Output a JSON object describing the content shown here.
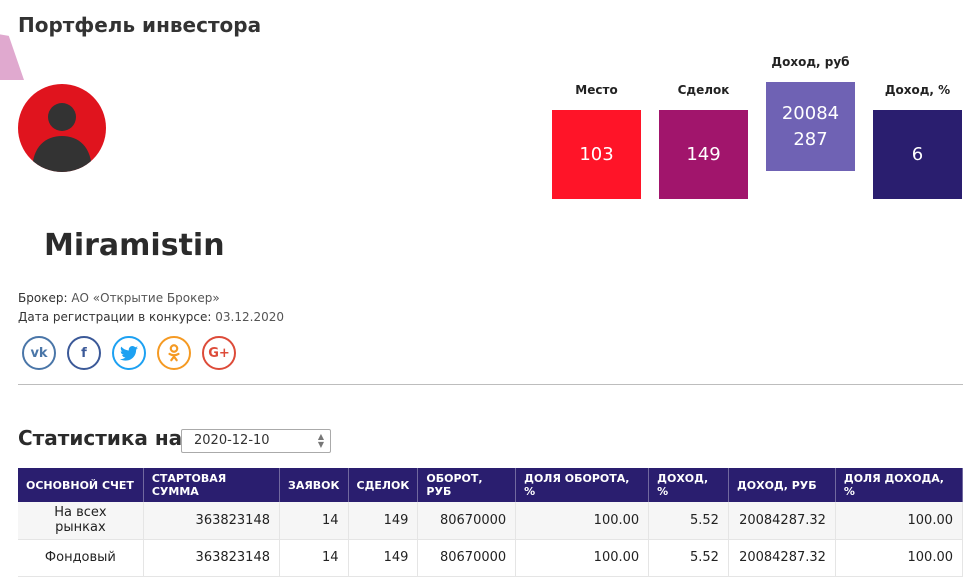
{
  "page_title": "Портфель инвестора",
  "profile": {
    "username": "Miramistin",
    "broker_label": "Брокер:",
    "broker_value": "АО «Открытие Брокер»",
    "reg_label": "Дата регистрации в конкурсе:",
    "reg_value": "03.12.2020"
  },
  "stats": [
    {
      "label": "Место",
      "value": "103",
      "color": "#ff1428"
    },
    {
      "label": "Сделок",
      "value": "149",
      "color": "#a1156c"
    },
    {
      "label": "Доход, руб",
      "value_line1": "20084",
      "value_line2": "287",
      "color": "#6f62b4"
    },
    {
      "label": "Доход, %",
      "value": "6",
      "color": "#2a1e6f"
    }
  ],
  "socials": [
    {
      "icon": "vk-icon",
      "glyph": "vk",
      "color": "#4a76a8"
    },
    {
      "icon": "facebook-icon",
      "glyph": "f",
      "color": "#3b5998"
    },
    {
      "icon": "twitter-icon",
      "glyph": "t",
      "color": "#1da1f2"
    },
    {
      "icon": "odnoklassniki-icon",
      "glyph": "ok",
      "color": "#f59a23"
    },
    {
      "icon": "google-plus-icon",
      "glyph": "G+",
      "color": "#dd4b39"
    }
  ],
  "statistics": {
    "heading": "Статистика на",
    "date_value": "2020-12-10",
    "columns": [
      "Основной счет",
      "Стартовая сумма",
      "Заявок",
      "Сделок",
      "Оборот, руб",
      "Доля оборота, %",
      "Доход, %",
      "Доход, руб",
      "Доля дохода, %"
    ],
    "rows": [
      [
        "На всех рынках",
        "363823148",
        "14",
        "149",
        "80670000",
        "100.00",
        "5.52",
        "20084287.32",
        "100.00"
      ],
      [
        "Фондовый",
        "363823148",
        "14",
        "149",
        "80670000",
        "100.00",
        "5.52",
        "20084287.32",
        "100.00"
      ]
    ]
  }
}
